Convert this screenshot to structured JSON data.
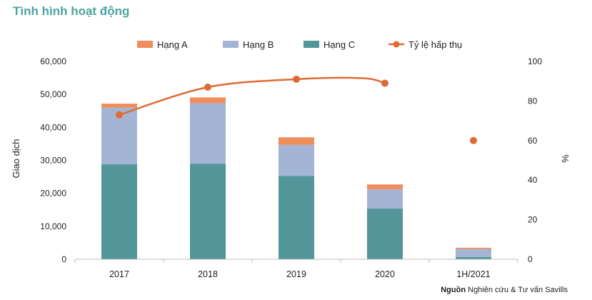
{
  "page_title": "Tình hình hoạt động",
  "source": {
    "label": "Nguồn",
    "text": "Nghiên cứu & Tư vấn Savills"
  },
  "chart_data": {
    "type": "bar",
    "stacked": true,
    "categories": [
      "2017",
      "2018",
      "2019",
      "2020",
      "1H/2021"
    ],
    "series": [
      {
        "name": "Hạng C",
        "color": "#52969a",
        "values": [
          28800,
          29000,
          25300,
          15400,
          700
        ]
      },
      {
        "name": "Hạng B",
        "color": "#a4b4d4",
        "values": [
          17200,
          18300,
          9400,
          5800,
          2400
        ]
      },
      {
        "name": "Hạng A",
        "color": "#ef8d5d",
        "values": [
          1200,
          1800,
          2300,
          1500,
          400
        ]
      }
    ],
    "line_series": {
      "name": "Tỷ lệ hấp thụ",
      "color": "#e06a33",
      "axis": "right",
      "values": [
        73,
        87,
        91,
        91.5,
        89,
        60
      ],
      "x": [
        0,
        1,
        2,
        2.75,
        3,
        4
      ],
      "connected_through": 3
    },
    "legend_order": [
      "Hạng A",
      "Hạng B",
      "Hạng C",
      "Tỷ lệ hấp thụ"
    ],
    "legend_position": "top",
    "ylabel": "Giao dịch",
    "ylabel_right": "%",
    "ylim": [
      0,
      60000
    ],
    "ylim_right": [
      0,
      100
    ],
    "yticks": [
      "0",
      "10,000",
      "20,000",
      "30,000",
      "40,000",
      "50,000",
      "60,000"
    ],
    "yticks_right": [
      "0",
      "20",
      "40",
      "60",
      "80",
      "100"
    ],
    "grid": false
  }
}
